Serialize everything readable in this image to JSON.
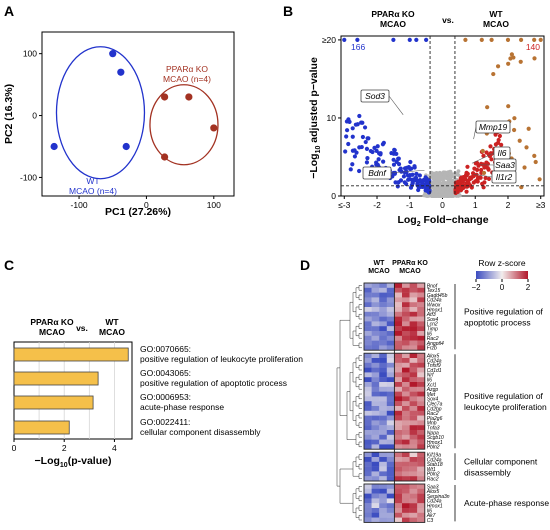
{
  "panel_labels": [
    "A",
    "B",
    "C",
    "D"
  ],
  "chart_data": [
    {
      "panel": "A",
      "type": "scatter",
      "title": "",
      "xlabel": "PC1 (27.26%)",
      "ylabel": "PC2 (16.3%)",
      "xlim": [
        -155,
        130
      ],
      "ylim": [
        -130,
        135
      ],
      "xticks": [
        "-100",
        "0",
        "100"
      ],
      "yticks": [
        "-100",
        "0",
        "100"
      ],
      "grid": false,
      "series": [
        {
          "name": "WT MCAO (n=4)",
          "label_lines": [
            "WT",
            "MCAO (n=4)"
          ],
          "color": "#2233cc",
          "x": [
            -50,
            -38,
            -137,
            -30
          ],
          "y": [
            100,
            70,
            -50,
            -50
          ]
        },
        {
          "name": "PPARα KO MCAO (n=4)",
          "label_lines": [
            "PPARα KO",
            "MCAO (n=4)"
          ],
          "color": "#a33222",
          "x": [
            27,
            63,
            100,
            27
          ],
          "y": [
            30,
            30,
            -20,
            -67
          ]
        }
      ]
    },
    {
      "panel": "B",
      "type": "scatter",
      "title": "",
      "group_labels": {
        "left_line1": "PPARα KO",
        "left_line2": "MCAO",
        "vs": "vs.",
        "right_line1": "WT",
        "right_line2": "MCAO"
      },
      "xlabel": "Log2 Fold-change",
      "ylabel": "−Log10 adjusted p−value",
      "xlim": [
        -3.1,
        3.1
      ],
      "ylim": [
        0,
        20.5
      ],
      "xticks": [
        "≤-3",
        "-2",
        "-1",
        "0",
        "1",
        "2",
        "≥3"
      ],
      "yticks": [
        "0",
        "10",
        "≥20"
      ],
      "threshold_fc": [
        -0.38,
        0.38
      ],
      "threshold_p": 1.3,
      "counts": {
        "down": "166",
        "up": "140"
      },
      "colors": {
        "down": "#2233cc",
        "up": "#cc2222",
        "capped": "#b87333",
        "ns": "#b5b5b5"
      },
      "capped_down_x": [
        -3,
        -2.6,
        -1.5,
        -1.0,
        -0.8,
        -0.5
      ],
      "capped_up_x": [
        0.7,
        1.2,
        1.5,
        2.0,
        2.4,
        2.8,
        3.0
      ],
      "labeled_genes": [
        {
          "gene": "Sod3",
          "x": -1.2,
          "y": 10.4
        },
        {
          "gene": "Bdnf",
          "x": -0.55,
          "y": 3.3
        },
        {
          "gene": "Mmp19",
          "x": 0.95,
          "y": 7.3
        },
        {
          "gene": "Il6",
          "x": 0.9,
          "y": 4.2
        },
        {
          "gene": "Saa3",
          "x": 1.15,
          "y": 4.0
        },
        {
          "gene": "Il1r2",
          "x": 0.95,
          "y": 2.8
        }
      ]
    },
    {
      "panel": "C",
      "type": "bar",
      "orientation": "horizontal",
      "title": "",
      "group_labels": {
        "left_line1": "PPARα KO",
        "left_line2": "MCAO",
        "vs": "vs.",
        "right_line1": "WT",
        "right_line2": "MCAO"
      },
      "xlabel": "−Log10(p-value)",
      "xlim": [
        0,
        4.7
      ],
      "xticks": [
        "0",
        "2",
        "4"
      ],
      "bar_color": "#f5c04a",
      "bars": [
        {
          "id": "GO:0070665:",
          "term": "positive regulation of leukocyte proliferation",
          "value": 4.55
        },
        {
          "id": "GO:0043065:",
          "term": "positive regulation of apoptotic process",
          "value": 3.35
        },
        {
          "id": "GO:0006953:",
          "term": "acute-phase response",
          "value": 3.15
        },
        {
          "id": "GO:0022411:",
          "term": "cellular component disassembly",
          "value": 2.2
        }
      ]
    },
    {
      "panel": "D",
      "type": "heatmap",
      "title": "",
      "columns": {
        "left_line1": "WT",
        "left_line2": "MCAO",
        "right_line1": "PPARα KO",
        "right_line2": "MCAO"
      },
      "colorbar": {
        "title": "Row z-score",
        "ticks": [
          "−2",
          "0",
          "2"
        ],
        "low": "#3b4cc0",
        "mid": "#f2eded",
        "high": "#b2182b"
      },
      "value_range": [
        -2,
        2
      ],
      "groups": [
        {
          "name_lines": [
            "Positive regulation of",
            "apoptotic process"
          ],
          "genes": [
            "Bnof",
            "Tex15",
            "Gadd45b",
            "Cd24a",
            "Wwox",
            "Hmox1",
            "Atf3",
            "Sox4",
            "Lcn2",
            "Timp",
            "Il6",
            "Rac2",
            "Angptl4",
            "Frzb"
          ]
        },
        {
          "name_lines": [
            "Positive regulation of",
            "leukocyte proliferation"
          ],
          "genes": [
            "Alox5",
            "Cd24a",
            "Tnfsf9",
            "Cd1d1",
            "Nrf",
            "Il6",
            "Xcl1",
            "Azgp",
            "Met",
            "Sox4",
            "Clec7a",
            "Cd2bp",
            "Rac2",
            "Pla2g6",
            "Mnb",
            "Tnfa3",
            "Nppa",
            "Scgb10",
            "Hmox1",
            "Pbln2"
          ]
        },
        {
          "name_lines": [
            "Cellular component",
            "disassembly"
          ],
          "genes": [
            "Kif19a",
            "Cd24a",
            "Stab18",
            "Wt1",
            "Pbln2",
            "Rac2"
          ]
        },
        {
          "name_lines": [
            "Acute-phase response"
          ],
          "genes": [
            "Saa3",
            "Alox5",
            "Serpina3n",
            "Cd24a",
            "Hmox1",
            "Il6",
            "Ak7",
            "C3"
          ]
        }
      ]
    }
  ]
}
